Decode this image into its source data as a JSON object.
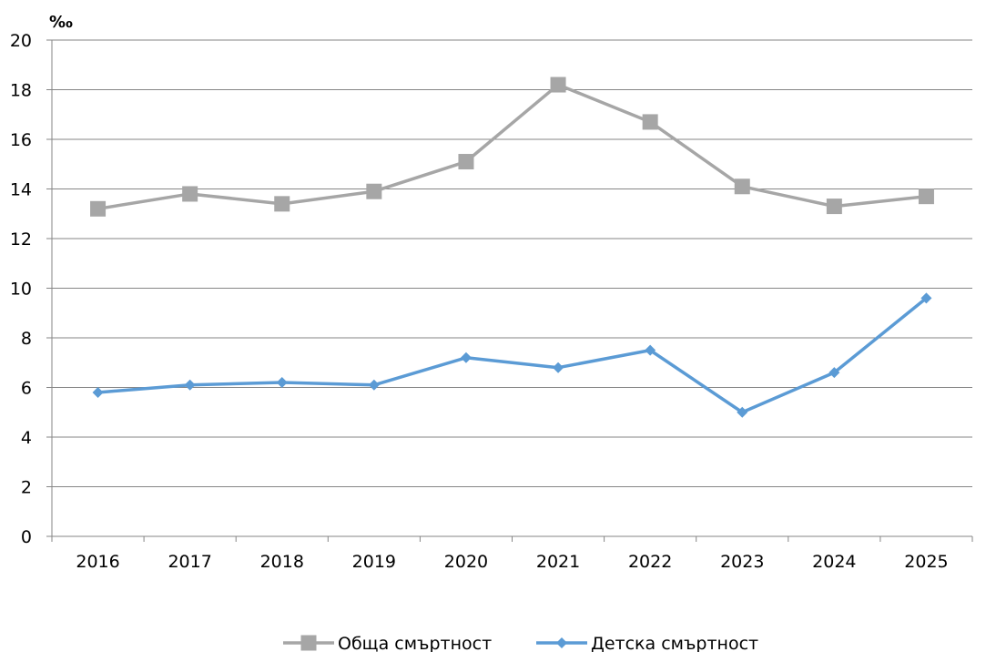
{
  "chart_data": {
    "type": "line",
    "title": "",
    "unit_label": "‰",
    "xlabel": "",
    "ylabel": "",
    "categories": [
      "2016",
      "2017",
      "2018",
      "2019",
      "2020",
      "2021",
      "2022",
      "2023",
      "2024",
      "2025"
    ],
    "ylim": [
      0,
      20
    ],
    "yticks": [
      0,
      2,
      4,
      6,
      8,
      10,
      12,
      14,
      16,
      18,
      20
    ],
    "grid": true,
    "legend_position": "bottom",
    "series": [
      {
        "name": "Обща смъртност",
        "color": "#A6A6A6",
        "marker": "square",
        "values": [
          13.2,
          13.8,
          13.4,
          13.9,
          15.1,
          18.2,
          16.7,
          14.1,
          13.3,
          13.7
        ]
      },
      {
        "name": "Детска смъртност",
        "color": "#5B9BD5",
        "marker": "diamond",
        "values": [
          5.8,
          6.1,
          6.2,
          6.1,
          7.2,
          6.8,
          7.5,
          5.0,
          6.6,
          9.6
        ]
      }
    ]
  }
}
